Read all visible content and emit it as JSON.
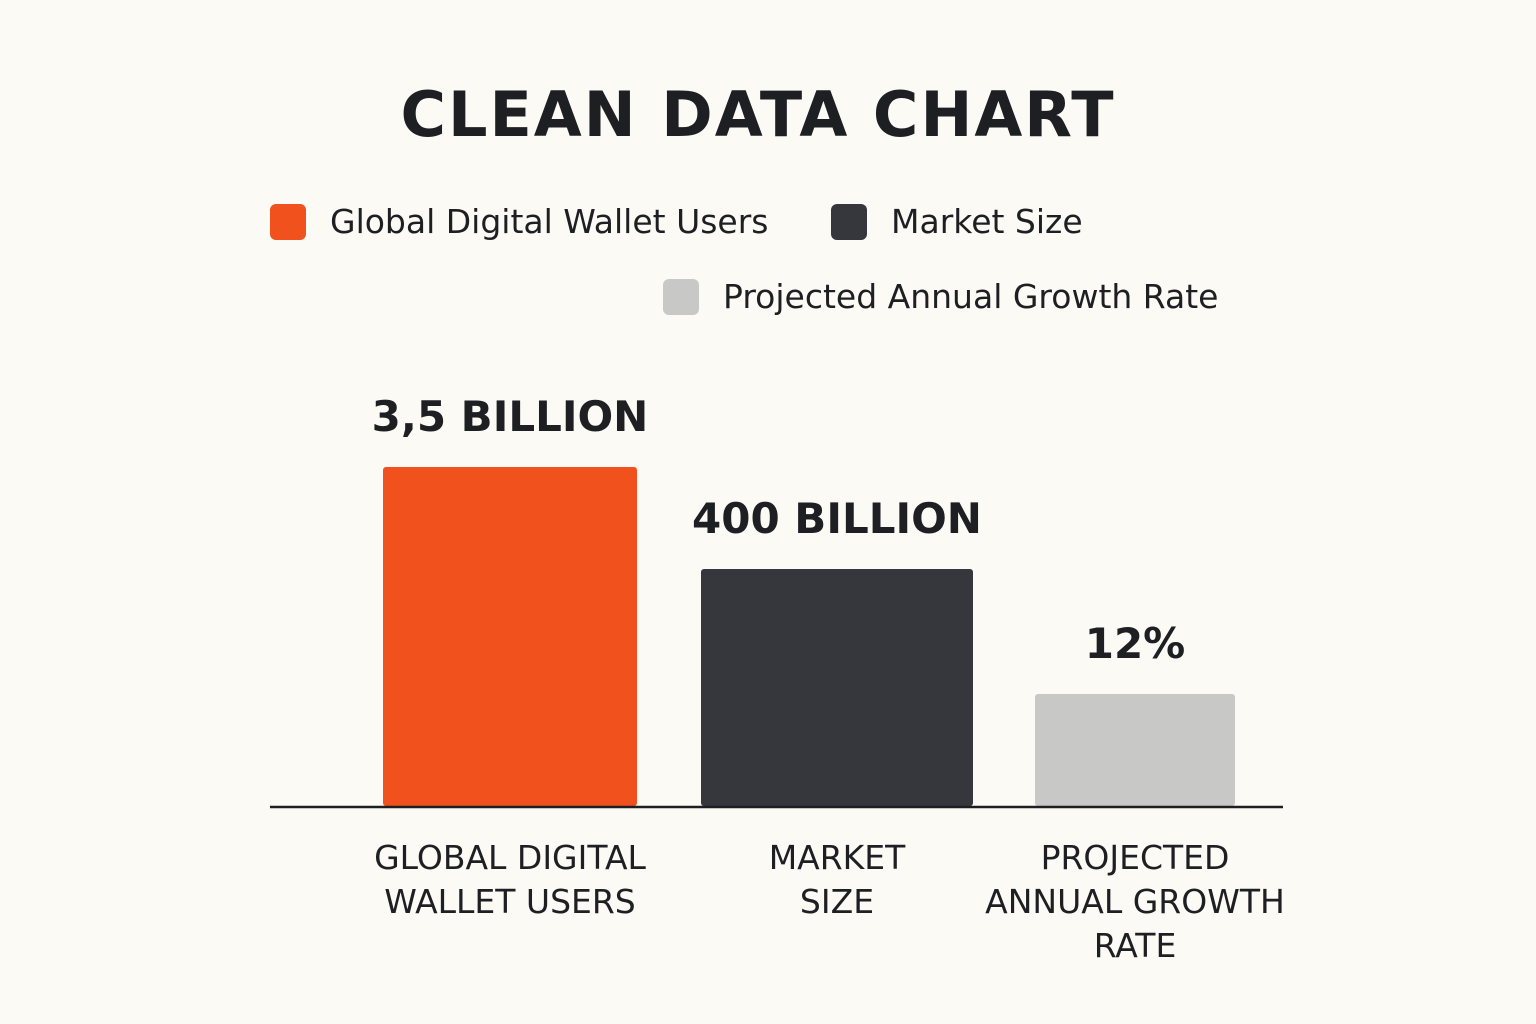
{
  "chart_data": {
    "type": "bar",
    "title": "CLEAN DATA CHART",
    "categories": [
      [
        "GLOBAL DIGITAL",
        "WALLET USERS"
      ],
      [
        "MARKET",
        "SIZE"
      ],
      [
        "PROJECTED",
        "ANNUAL GROWTH",
        "RATE"
      ]
    ],
    "legend": [
      {
        "label": "Global Digital Wallet Users",
        "color": "#f0511d"
      },
      {
        "label": "Market Size",
        "color": "#36373c"
      },
      {
        "label": "Projected Annual Growth Rate",
        "color": "#c8c8c6"
      }
    ],
    "bars": [
      {
        "display_value": "3,5 BILLION",
        "relative_height": 1.0,
        "color": "#f0511d"
      },
      {
        "display_value": "400 BILLION",
        "relative_height": 0.7,
        "color": "#36373c"
      },
      {
        "display_value": "12%",
        "relative_height": 0.33,
        "color": "#c8c8c6"
      }
    ],
    "legend_position": "top",
    "grid": false,
    "ylabel": "",
    "xlabel": ""
  }
}
